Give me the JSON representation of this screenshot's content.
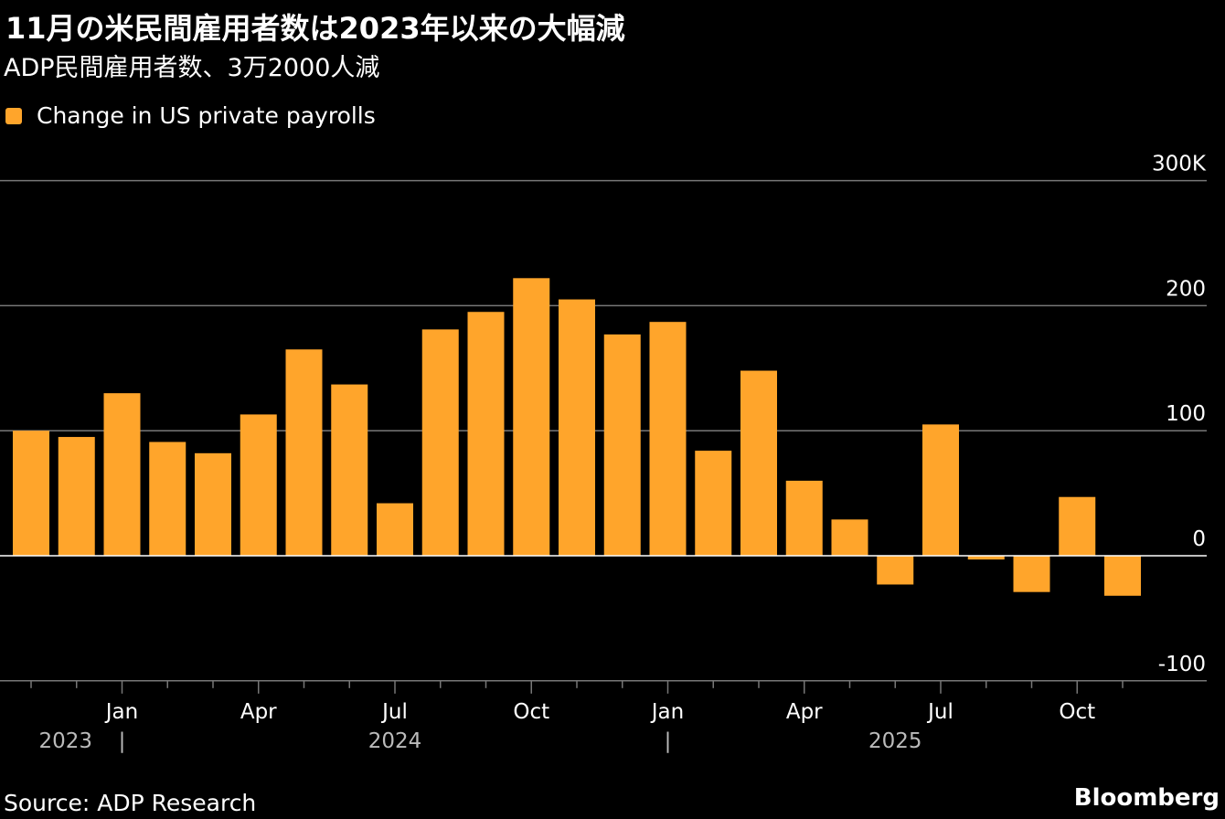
{
  "title": "11月の米民間雇用者数は2023年以来の大幅減",
  "subtitle": "ADP民間雇用者数、3万2000人減",
  "legend": {
    "label": "Change in US private payrolls"
  },
  "source": "Source: ADP Research",
  "brand": "Bloomberg",
  "colors": {
    "bar": "#FFA52B",
    "grid": "#777777",
    "zero": "#ffffff",
    "text": "#ffffff",
    "year": "#bbbbbb",
    "background": "#000000"
  },
  "chart_data": {
    "type": "bar",
    "categories": [
      "2023-11",
      "2023-12",
      "2024-01",
      "2024-02",
      "2024-03",
      "2024-04",
      "2024-05",
      "2024-06",
      "2024-07",
      "2024-08",
      "2024-09",
      "2024-10",
      "2024-11",
      "2024-12",
      "2025-01",
      "2025-02",
      "2025-03",
      "2025-04",
      "2025-05",
      "2025-06",
      "2025-07",
      "2025-08",
      "2025-09",
      "2025-10",
      "2025-11"
    ],
    "series": [
      {
        "name": "Change in US private payrolls",
        "values": [
          100,
          95,
          130,
          91,
          82,
          113,
          165,
          137,
          42,
          181,
          195,
          222,
          205,
          177,
          187,
          84,
          148,
          60,
          29,
          -23,
          105,
          -3,
          -29,
          47,
          -32
        ]
      }
    ],
    "ylim": [
      -100,
      300
    ],
    "yticks": [
      {
        "value": 300,
        "label": "300K"
      },
      {
        "value": 200,
        "label": "200"
      },
      {
        "value": 100,
        "label": "100"
      },
      {
        "value": 0,
        "label": "0"
      },
      {
        "value": -100,
        "label": "-100"
      }
    ],
    "xtick_labels": [
      {
        "index": 2,
        "label": "Jan"
      },
      {
        "index": 5,
        "label": "Apr"
      },
      {
        "index": 8,
        "label": "Jul"
      },
      {
        "index": 11,
        "label": "Oct"
      },
      {
        "index": 14,
        "label": "Jan"
      },
      {
        "index": 17,
        "label": "Apr"
      },
      {
        "index": 20,
        "label": "Jul"
      },
      {
        "index": 23,
        "label": "Oct"
      }
    ],
    "year_labels": [
      {
        "index": 1,
        "label": "2023"
      },
      {
        "index": 8,
        "label": "2024"
      },
      {
        "index": 19,
        "label": "2025"
      }
    ],
    "year_dividers": [
      2,
      14
    ],
    "year_divider_char": "|",
    "grid": true,
    "legend_position": "top-left"
  }
}
